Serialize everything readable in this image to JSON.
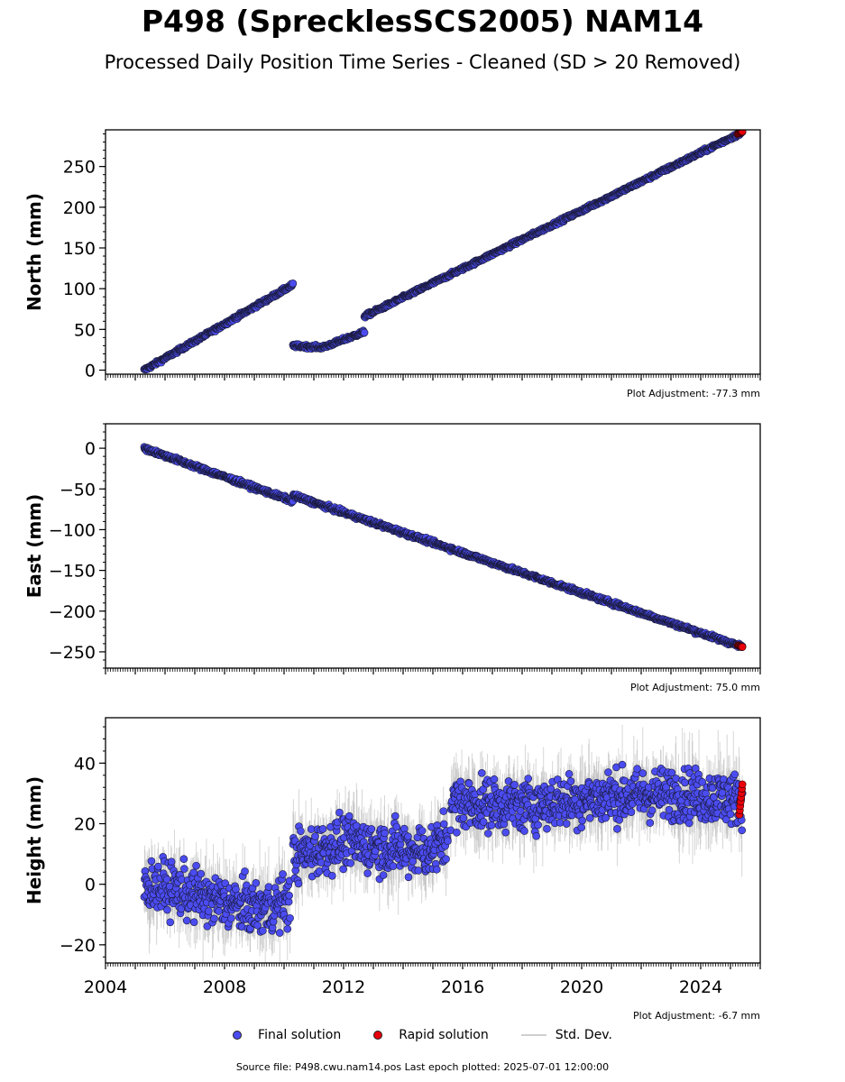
{
  "title": "P498 (SprecklesSCS2005) NAM14",
  "subtitle": "Processed Daily Position Time Series - Cleaned (SD > 20 Removed)",
  "colors": {
    "final": "#4b4cf0",
    "rapid": "#e8000b",
    "sd": "#b5b5b5",
    "edge": "#1a1a3a"
  },
  "legend": {
    "final": "Final solution",
    "rapid": "Rapid solution",
    "sd": "Std. Dev."
  },
  "source": "Source file: P498.cwu.nam14.pos  Last epoch plotted: 2025-07-01 12:00:00",
  "chart_data": [
    {
      "type": "scatter",
      "ylabel": "North (mm)",
      "adjustment": "Plot Adjustment: -77.3 mm",
      "xlim": [
        2004,
        2026
      ],
      "ylim": [
        -5,
        295
      ],
      "yticks": [
        0,
        50,
        100,
        150,
        200,
        250
      ],
      "xtick_labels_shown": false,
      "segments": [
        {
          "x": [
            2005.3,
            2010.3
          ],
          "y": [
            0,
            105
          ]
        },
        {
          "x": [
            2010.3,
            2011.3,
            2012.7
          ],
          "y": [
            30,
            28,
            47
          ]
        },
        {
          "x": [
            2012.7,
            2025.4
          ],
          "y": [
            66,
            292
          ]
        }
      ],
      "noise": 1.5,
      "sd_noise": 2,
      "rapid": {
        "x": [
          2025.25,
          2025.4
        ],
        "y": [
          290,
          293
        ]
      }
    },
    {
      "type": "scatter",
      "ylabel": "East (mm)",
      "adjustment": "Plot Adjustment: 75.0 mm",
      "xlim": [
        2004,
        2026
      ],
      "ylim": [
        -270,
        30
      ],
      "yticks": [
        0,
        -50,
        -100,
        -150,
        -200,
        -250
      ],
      "xtick_labels_shown": false,
      "segments": [
        {
          "x": [
            2005.3,
            2010.3
          ],
          "y": [
            0,
            -65
          ]
        },
        {
          "x": [
            2010.3,
            2025.4
          ],
          "y": [
            -58,
            -244
          ]
        }
      ],
      "noise": 1.8,
      "sd_noise": 2,
      "rapid": {
        "x": [
          2025.25,
          2025.4
        ],
        "y": [
          -242,
          -244
        ]
      }
    },
    {
      "type": "scatter",
      "ylabel": "Height (mm)",
      "adjustment": "Plot Adjustment: -6.7 mm",
      "xlim": [
        2004,
        2026
      ],
      "ylim": [
        -26,
        55
      ],
      "yticks": [
        -20,
        0,
        20,
        40
      ],
      "xtick_labels_shown": true,
      "xticks": [
        2004,
        2008,
        2012,
        2016,
        2020,
        2024
      ],
      "segments": [
        {
          "x": [
            2005.3,
            2006.5,
            2007.5,
            2008.5,
            2009.5,
            2010.2
          ],
          "y": [
            0,
            -2,
            -5,
            -7,
            -8,
            -5
          ]
        },
        {
          "x": [
            2010.3,
            2012.0,
            2013.5,
            2015.0,
            2015.5
          ],
          "y": [
            9,
            14,
            12,
            11,
            16
          ]
        },
        {
          "x": [
            2015.6,
            2018.0,
            2021.0,
            2023.0,
            2025.4
          ],
          "y": [
            27,
            26,
            29,
            30,
            28
          ]
        }
      ],
      "noise": 6,
      "sd_noise": 8,
      "rapid": {
        "x": [
          2025.3,
          2025.4
        ],
        "y": [
          23,
          33
        ]
      }
    }
  ]
}
